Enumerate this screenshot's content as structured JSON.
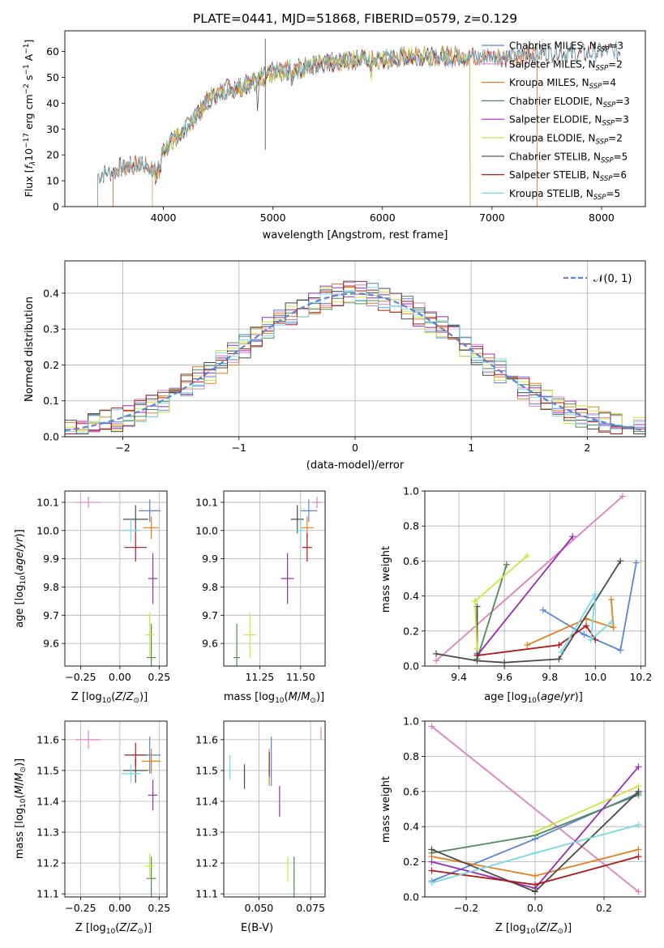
{
  "figure_title": "PLATE=0441, MJD=51868, FIBERID=0579, z=0.129",
  "colors": {
    "Chabrier MILES": "#5b84d6",
    "Salpeter MILES": "#e07fc0",
    "Kroupa MILES": "#e0801e",
    "Chabrier ELODIE": "#4f8a55",
    "Salpeter ELODIE": "#9b2cb5",
    "Kroupa ELODIE": "#cde63c",
    "Chabrier STELIB": "#4a4a4a",
    "Salpeter STELIB": "#b01a1a",
    "Kroupa STELIB": "#78d8e6",
    "normal": "#5b84d6"
  },
  "chart_data": [
    {
      "id": "spectrum",
      "type": "line",
      "title": "",
      "xlabel": "wavelength [Angstrom, rest frame]",
      "ylabel": "Flux [f_λ10^-17 erg cm^-2 s^-1 A^-1]",
      "xlim": [
        3100,
        8400
      ],
      "ylim": [
        0,
        68
      ],
      "xticks": [
        "4000",
        "5000",
        "6000",
        "7000",
        "8000"
      ],
      "yticks": [
        "0",
        "10",
        "20",
        "30",
        "40",
        "50",
        "60"
      ],
      "grid": false,
      "legend": "right",
      "legend_entries": [
        {
          "model": "Chabrier MILES",
          "nssp": "3"
        },
        {
          "model": "Salpeter MILES",
          "nssp": "2"
        },
        {
          "model": "Kroupa MILES",
          "nssp": "4"
        },
        {
          "model": "Chabrier ELODIE",
          "nssp": "3"
        },
        {
          "model": "Salpeter ELODIE",
          "nssp": "3"
        },
        {
          "model": "Kroupa ELODIE",
          "nssp": "2"
        },
        {
          "model": "Chabrier STELIB",
          "nssp": "5"
        },
        {
          "model": "Salpeter STELIB",
          "nssp": "6"
        },
        {
          "model": "Kroupa STELIB",
          "nssp": "5"
        }
      ],
      "continuum": [
        [
          3360,
          12
        ],
        [
          3500,
          13
        ],
        [
          3600,
          15
        ],
        [
          3700,
          16
        ],
        [
          3800,
          16
        ],
        [
          3900,
          15
        ],
        [
          3950,
          17
        ],
        [
          4000,
          22
        ],
        [
          4100,
          26
        ],
        [
          4200,
          30
        ],
        [
          4300,
          35
        ],
        [
          4400,
          41
        ],
        [
          4500,
          44
        ],
        [
          4600,
          46
        ],
        [
          4700,
          46
        ],
        [
          4800,
          48
        ],
        [
          4900,
          50
        ],
        [
          5000,
          52
        ],
        [
          5200,
          53
        ],
        [
          5400,
          55
        ],
        [
          5600,
          56
        ],
        [
          5800,
          57
        ],
        [
          6000,
          57
        ],
        [
          6200,
          58
        ],
        [
          6400,
          58
        ],
        [
          6600,
          58
        ],
        [
          6800,
          58
        ],
        [
          7000,
          58
        ],
        [
          7200,
          58
        ],
        [
          7400,
          59
        ],
        [
          7600,
          60
        ],
        [
          7800,
          59
        ],
        [
          8000,
          60
        ],
        [
          8170,
          60
        ]
      ],
      "ranges": {
        "MILES": [
          3540,
          7410
        ],
        "ELODIE": [
          3900,
          6800
        ],
        "STELIB": [
          3400,
          8200
        ]
      }
    },
    {
      "id": "residuals",
      "type": "line",
      "xlabel": "(data-model)/error",
      "ylabel": "Normed distribution",
      "xlim": [
        -2.5,
        2.5
      ],
      "ylim": [
        0,
        0.49
      ],
      "xticks": [
        "−2",
        "−1",
        "0",
        "1",
        "2"
      ],
      "yticks": [
        "0.0",
        "0.1",
        "0.2",
        "0.3",
        "0.4"
      ],
      "grid": true,
      "legend": "top-right",
      "legend_label": "𝒩(0, 1)"
    },
    {
      "id": "age_vs_Z",
      "type": "scatter",
      "xlabel": "Z [log10(Z/Z⊙)]",
      "ylabel": "age  [log10(age/yr)]",
      "xlim": [
        -0.35,
        0.3
      ],
      "ylim": [
        9.52,
        10.14
      ],
      "xticks": [
        "−0.25",
        "0.00",
        "0.25"
      ],
      "yticks": [
        "9.6",
        "9.7",
        "9.8",
        "9.9",
        "10.0",
        "10.1"
      ],
      "grid": true,
      "points": [
        {
          "model": "Chabrier MILES",
          "x": 0.19,
          "y": 10.07,
          "xerr": 0.07,
          "yerr": 0.04
        },
        {
          "model": "Salpeter MILES",
          "x": -0.2,
          "y": 10.1,
          "xerr": 0.08,
          "yerr": 0.02
        },
        {
          "model": "Kroupa MILES",
          "x": 0.2,
          "y": 10.01,
          "xerr": 0.05,
          "yerr": 0.04
        },
        {
          "model": "Chabrier ELODIE",
          "x": 0.2,
          "y": 9.55,
          "xerr": 0.03,
          "yerr": 0.12
        },
        {
          "model": "Salpeter ELODIE",
          "x": 0.21,
          "y": 9.83,
          "xerr": 0.03,
          "yerr": 0.09
        },
        {
          "model": "Kroupa ELODIE",
          "x": 0.19,
          "y": 9.63,
          "xerr": 0.03,
          "yerr": 0.08
        },
        {
          "model": "Chabrier STELIB",
          "x": 0.1,
          "y": 10.04,
          "xerr": 0.08,
          "yerr": 0.05
        },
        {
          "model": "Salpeter STELIB",
          "x": 0.1,
          "y": 9.94,
          "xerr": 0.07,
          "yerr": 0.05
        },
        {
          "model": "Kroupa STELIB",
          "x": 0.07,
          "y": 10.0,
          "xerr": 0.06,
          "yerr": 0.04
        }
      ]
    },
    {
      "id": "age_vs_mass",
      "type": "scatter",
      "xlabel": "mass [log10(M/M⊙)]",
      "ylabel": "",
      "xlim": [
        11.03,
        11.65
      ],
      "ylim": [
        9.52,
        10.14
      ],
      "xticks": [
        "11.25",
        "11.50"
      ],
      "yticks": [
        "9.6",
        "9.7",
        "9.8",
        "9.9",
        "10.0",
        "10.1"
      ],
      "grid": true,
      "points": [
        {
          "model": "Chabrier MILES",
          "x": 11.55,
          "y": 10.07,
          "xerr": 0.05,
          "yerr": 0.04
        },
        {
          "model": "Salpeter MILES",
          "x": 11.6,
          "y": 10.1,
          "xerr": 0.03,
          "yerr": 0.02
        },
        {
          "model": "Kroupa MILES",
          "x": 11.54,
          "y": 10.01,
          "xerr": 0.04,
          "yerr": 0.04
        },
        {
          "model": "Chabrier ELODIE",
          "x": 11.11,
          "y": 9.55,
          "xerr": 0.02,
          "yerr": 0.12
        },
        {
          "model": "Salpeter ELODIE",
          "x": 11.42,
          "y": 9.83,
          "xerr": 0.04,
          "yerr": 0.09
        },
        {
          "model": "Kroupa ELODIE",
          "x": 11.19,
          "y": 9.63,
          "xerr": 0.04,
          "yerr": 0.08
        },
        {
          "model": "Chabrier STELIB",
          "x": 11.48,
          "y": 10.04,
          "xerr": 0.04,
          "yerr": 0.05
        },
        {
          "model": "Salpeter STELIB",
          "x": 11.54,
          "y": 9.94,
          "xerr": 0.03,
          "yerr": 0.05
        },
        {
          "model": "Kroupa STELIB",
          "x": 11.5,
          "y": 10.0,
          "xerr": 0.03,
          "yerr": 0.04
        }
      ]
    },
    {
      "id": "mass_vs_Z",
      "type": "scatter",
      "xlabel": "Z [log10(Z/Z⊙)]",
      "ylabel": "mass [log10(M/M⊙)]",
      "xlim": [
        -0.35,
        0.3
      ],
      "ylim": [
        11.09,
        11.66
      ],
      "xticks": [
        "−0.25",
        "0.00",
        "0.25"
      ],
      "yticks": [
        "11.1",
        "11.2",
        "11.3",
        "11.4",
        "11.5",
        "11.6"
      ],
      "grid": true,
      "points": [
        {
          "model": "Chabrier MILES",
          "x": 0.19,
          "y": 11.55,
          "xerr": 0.07,
          "yerr": 0.06
        },
        {
          "model": "Salpeter MILES",
          "x": -0.2,
          "y": 11.6,
          "xerr": 0.08,
          "yerr": 0.03
        },
        {
          "model": "Kroupa MILES",
          "x": 0.2,
          "y": 11.53,
          "xerr": 0.06,
          "yerr": 0.04
        },
        {
          "model": "Chabrier ELODIE",
          "x": 0.2,
          "y": 11.15,
          "xerr": 0.03,
          "yerr": 0.07
        },
        {
          "model": "Salpeter ELODIE",
          "x": 0.21,
          "y": 11.42,
          "xerr": 0.03,
          "yerr": 0.05
        },
        {
          "model": "Kroupa ELODIE",
          "x": 0.19,
          "y": 11.19,
          "xerr": 0.03,
          "yerr": 0.04
        },
        {
          "model": "Chabrier STELIB",
          "x": 0.1,
          "y": 11.5,
          "xerr": 0.08,
          "yerr": 0.04
        },
        {
          "model": "Salpeter STELIB",
          "x": 0.1,
          "y": 11.55,
          "xerr": 0.07,
          "yerr": 0.04
        },
        {
          "model": "Kroupa STELIB",
          "x": 0.07,
          "y": 11.49,
          "xerr": 0.06,
          "yerr": 0.03
        }
      ]
    },
    {
      "id": "mass_vs_ebv",
      "type": "scatter",
      "xlabel": "E(B-V)",
      "ylabel": "",
      "xlim": [
        0.033,
        0.082
      ],
      "ylim": [
        11.09,
        11.66
      ],
      "xticks": [
        "0.050",
        "0.075"
      ],
      "yticks": [
        "11.1",
        "11.2",
        "11.3",
        "11.4",
        "11.5",
        "11.6"
      ],
      "grid": true,
      "points": [
        {
          "model": "Chabrier MILES",
          "x": 0.056,
          "y": 11.53,
          "yerr": 0.08
        },
        {
          "model": "Salpeter MILES",
          "x": 0.08,
          "y": 11.62,
          "yerr": 0.02
        },
        {
          "model": "Kroupa MILES",
          "x": 0.055,
          "y": 11.51,
          "yerr": 0.06
        },
        {
          "model": "Chabrier ELODIE",
          "x": 0.067,
          "y": 11.15,
          "yerr": 0.07
        },
        {
          "model": "Salpeter ELODIE",
          "x": 0.06,
          "y": 11.4,
          "yerr": 0.05
        },
        {
          "model": "Kroupa ELODIE",
          "x": 0.064,
          "y": 11.18,
          "yerr": 0.04
        },
        {
          "model": "Chabrier STELIB",
          "x": 0.043,
          "y": 11.48,
          "yerr": 0.04
        },
        {
          "model": "Salpeter STELIB",
          "x": 0.055,
          "y": 11.52,
          "yerr": 0.04
        },
        {
          "model": "Kroupa STELIB",
          "x": 0.036,
          "y": 11.51,
          "yerr": 0.04
        }
      ]
    },
    {
      "id": "weight_vs_age",
      "type": "line",
      "xlabel": "age  [log10(age/yr)]",
      "ylabel": "mass weight",
      "xlim": [
        9.25,
        10.22
      ],
      "ylim": [
        0,
        1.0
      ],
      "xticks": [
        "9.4",
        "9.6",
        "9.8",
        "10.0",
        "10.2"
      ],
      "yticks": [
        "0.0",
        "0.2",
        "0.4",
        "0.6",
        "0.8",
        "1.0"
      ],
      "grid": true,
      "series": [
        {
          "model": "Chabrier MILES",
          "x": [
            9.77,
            9.95,
            10.11,
            10.18
          ],
          "y": [
            0.32,
            0.18,
            0.09,
            0.59
          ]
        },
        {
          "model": "Salpeter MILES",
          "x": [
            9.3,
            10.12
          ],
          "y": [
            0.03,
            0.97
          ]
        },
        {
          "model": "Kroupa MILES",
          "x": [
            9.7,
            9.96,
            10.08,
            10.07
          ],
          "y": [
            0.12,
            0.27,
            0.22,
            0.38
          ]
        },
        {
          "model": "Chabrier ELODIE",
          "x": [
            9.48,
            9.61
          ],
          "y": [
            0.04,
            0.58
          ]
        },
        {
          "model": "Salpeter ELODIE",
          "x": [
            9.48,
            9.9
          ],
          "y": [
            0.06,
            0.74
          ]
        },
        {
          "model": "Kroupa ELODIE",
          "x": [
            9.47,
            9.7
          ],
          "y": [
            0.37,
            0.63
          ]
        },
        {
          "model": "Chabrier STELIB",
          "x": [
            9.3,
            9.48,
            9.6,
            9.84,
            10.11
          ],
          "y": [
            0.07,
            0.03,
            0.02,
            0.04,
            0.6
          ]
        },
        {
          "model": "Salpeter STELIB",
          "x": [
            9.48,
            9.84,
            9.96,
            10.0
          ],
          "y": [
            0.06,
            0.12,
            0.23,
            0.15
          ]
        },
        {
          "model": "Kroupa STELIB",
          "x": [
            9.85,
            10.0,
            9.98,
            10.07
          ],
          "y": [
            0.08,
            0.41,
            0.15,
            0.25
          ]
        }
      ],
      "extra_segments": [
        {
          "model": "Chabrier STELIB",
          "x": [
            9.48,
            9.48
          ],
          "y": [
            0.34,
            0.07
          ]
        },
        {
          "model": "Kroupa ELODIE",
          "x": [
            9.47,
            9.48
          ],
          "y": [
            0.37,
            0.1
          ]
        }
      ]
    },
    {
      "id": "weight_vs_Z",
      "type": "line",
      "xlabel": "Z [log10(Z/Z⊙)]",
      "ylabel": "mass weight",
      "xlim": [
        -0.32,
        0.32
      ],
      "ylim": [
        0,
        1.0
      ],
      "xticks": [
        "−0.2",
        "0.0",
        "0.2"
      ],
      "yticks": [
        "0.0",
        "0.2",
        "0.4",
        "0.6",
        "0.8",
        "1.0"
      ],
      "grid": true,
      "series": [
        {
          "model": "Chabrier MILES",
          "x": [
            -0.3,
            0.0,
            0.3
          ],
          "y": [
            0.09,
            0.33,
            0.59
          ]
        },
        {
          "model": "Salpeter MILES",
          "x": [
            -0.3,
            0.3
          ],
          "y": [
            0.97,
            0.03
          ]
        },
        {
          "model": "Kroupa MILES",
          "x": [
            -0.3,
            0.0,
            0.3
          ],
          "y": [
            0.23,
            0.12,
            0.27
          ]
        },
        {
          "model": "Chabrier ELODIE",
          "x": [
            -0.3,
            0.0,
            0.3
          ],
          "y": [
            0.25,
            0.35,
            0.58
          ]
        },
        {
          "model": "Salpeter ELODIE",
          "x": [
            -0.3,
            0.0,
            0.3
          ],
          "y": [
            0.2,
            0.05,
            0.74
          ]
        },
        {
          "model": "Kroupa ELODIE",
          "x": [
            0.0,
            0.3
          ],
          "y": [
            0.37,
            0.63
          ]
        },
        {
          "model": "Chabrier STELIB",
          "x": [
            -0.3,
            0.0,
            0.3
          ],
          "y": [
            0.27,
            0.03,
            0.6
          ]
        },
        {
          "model": "Salpeter STELIB",
          "x": [
            -0.3,
            0.0,
            0.3
          ],
          "y": [
            0.15,
            0.07,
            0.23
          ]
        },
        {
          "model": "Kroupa STELIB",
          "x": [
            -0.3,
            0.0,
            0.3
          ],
          "y": [
            0.08,
            0.25,
            0.41
          ]
        }
      ]
    }
  ]
}
